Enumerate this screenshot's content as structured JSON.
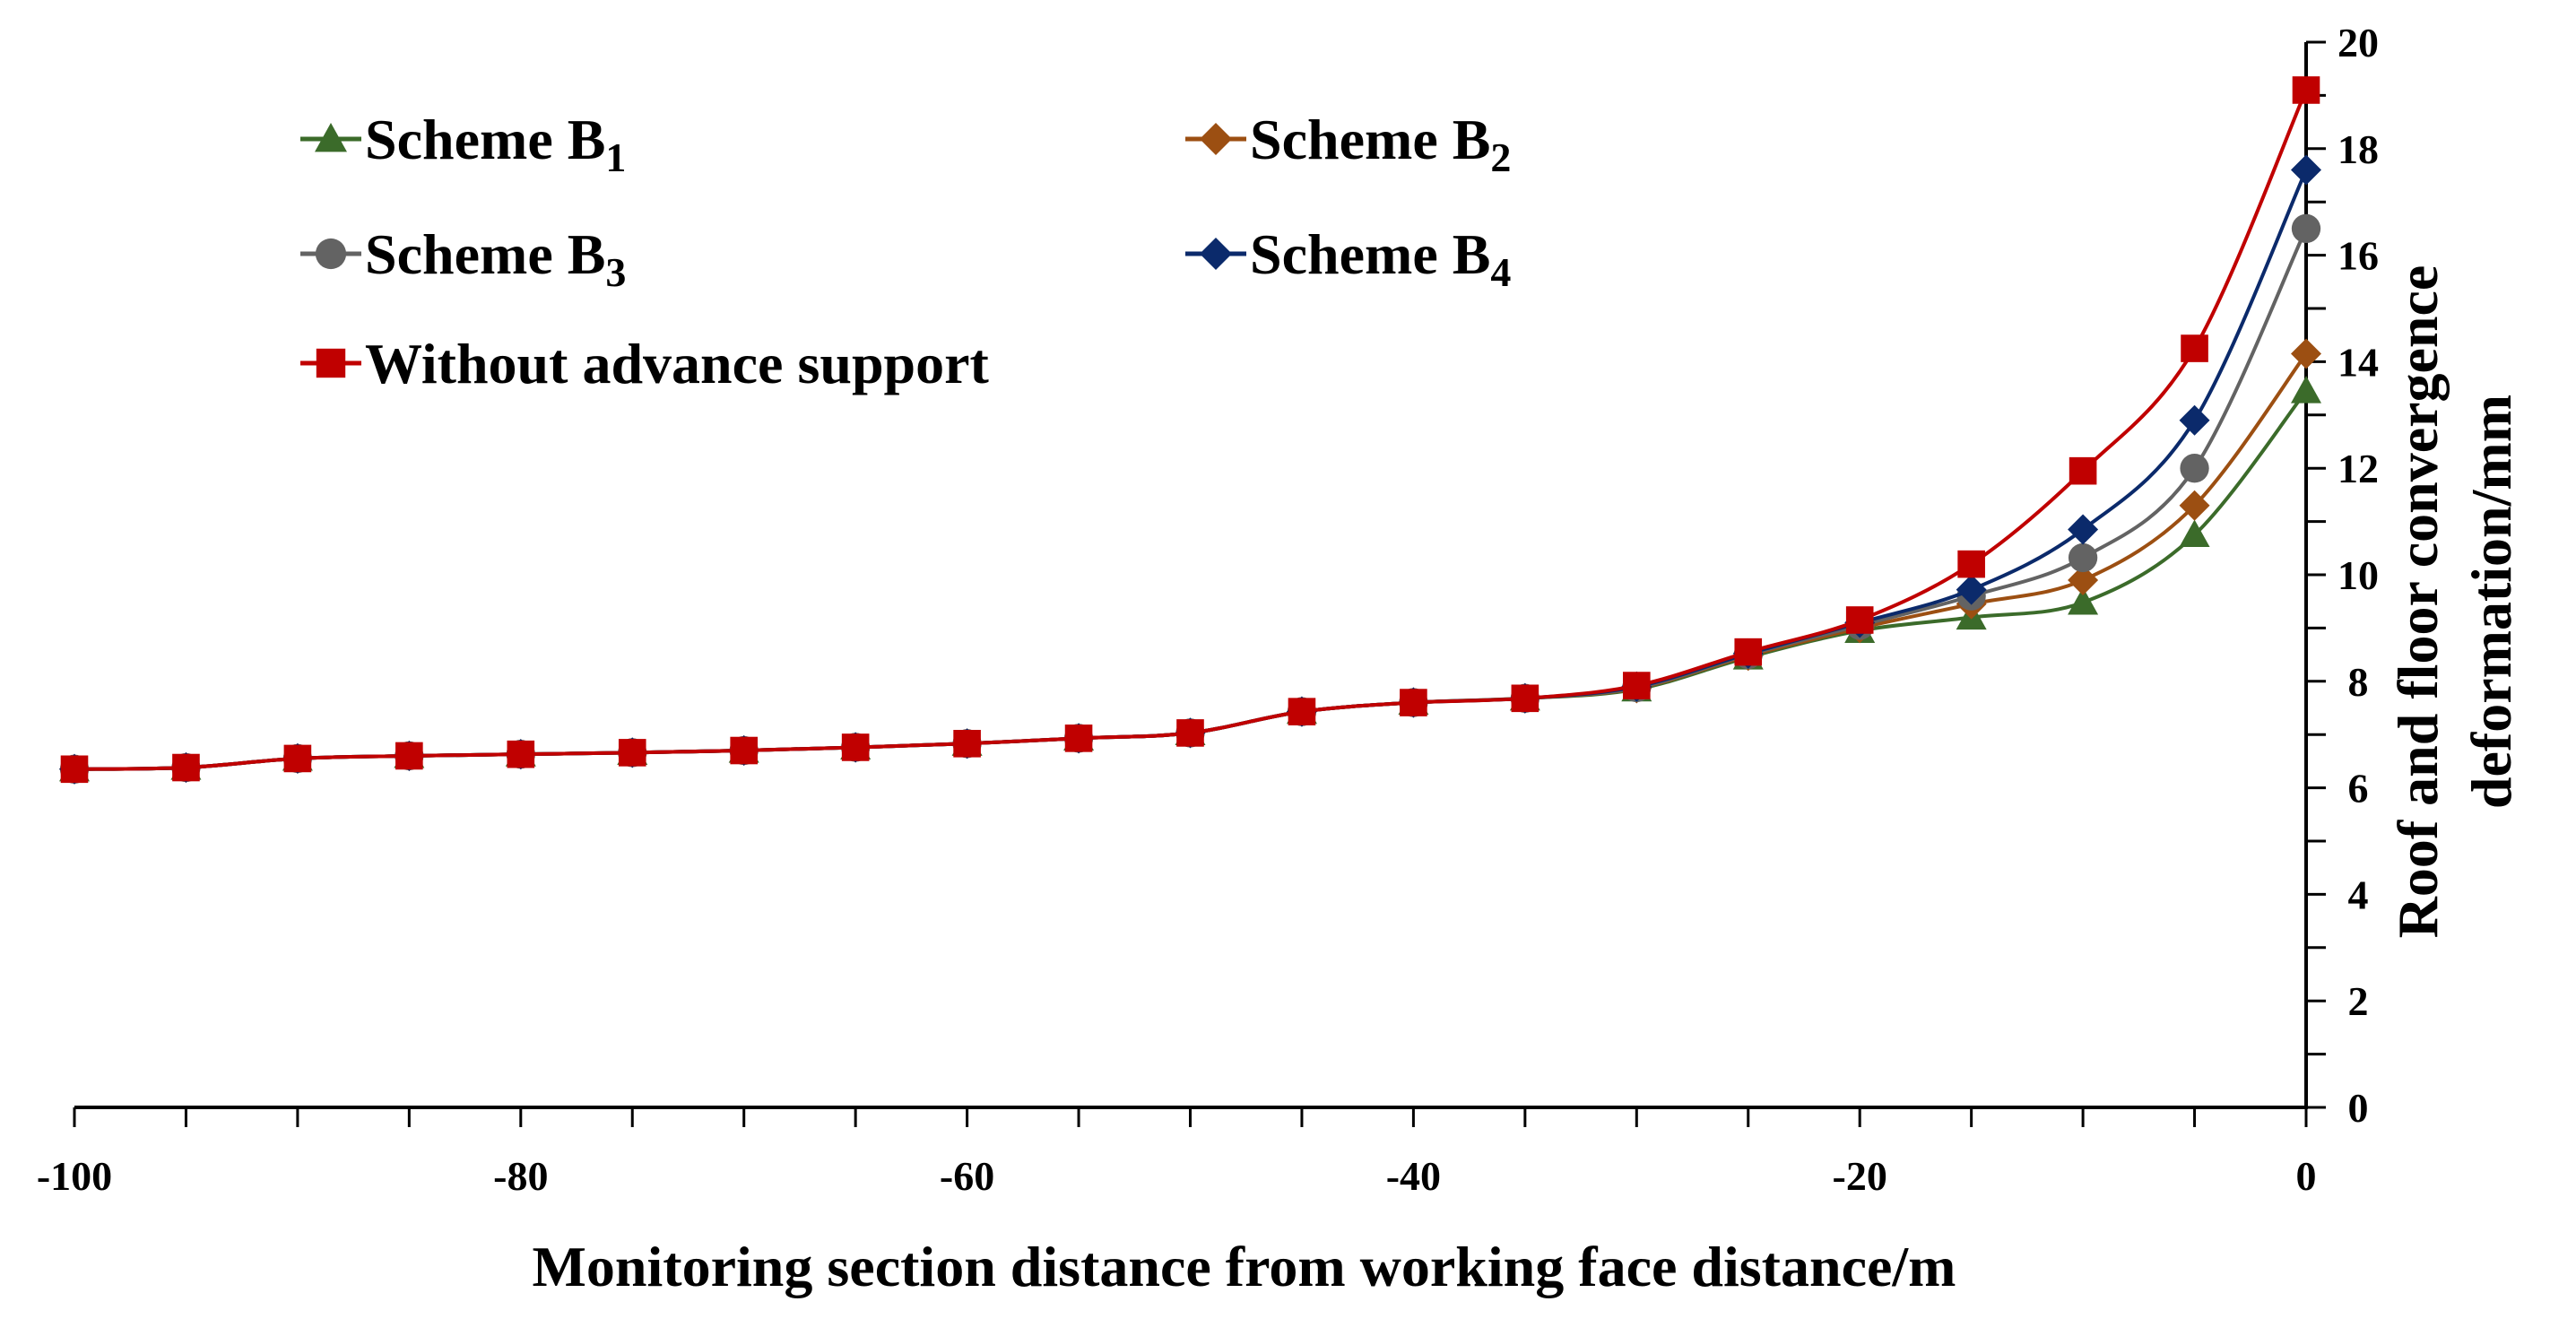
{
  "chart_data": {
    "type": "line",
    "title": "",
    "xlabel": "Monitoring section distance from working face distance/m",
    "ylabel_lines": [
      "Roof and floor convergence",
      "deformation/mm"
    ],
    "xlim": [
      -100,
      0
    ],
    "ylim": [
      0,
      20
    ],
    "x_ticks": [
      -100,
      -80,
      -60,
      -40,
      -20,
      0
    ],
    "y_ticks": [
      0,
      2,
      4,
      6,
      8,
      10,
      12,
      14,
      16,
      18,
      20
    ],
    "x_tick_labels": [
      "-100",
      "-80",
      "-60",
      "-40",
      "-20",
      "0"
    ],
    "y_tick_labels": [
      "0",
      "2",
      "4",
      "6",
      "8",
      "10",
      "12",
      "14",
      "16",
      "18",
      "20"
    ],
    "y_axis_position": "right",
    "grid": false,
    "legend_position": "top-left",
    "x": [
      -100,
      -95,
      -90,
      -85,
      -80,
      -75,
      -70,
      -65,
      -60,
      -55,
      -50,
      -45,
      -40,
      -35,
      -30,
      -25,
      -20,
      -15,
      -10,
      -5,
      0
    ],
    "series": [
      {
        "name": "Scheme  B",
        "subscript": "1",
        "color": "#3b6b2a",
        "marker": "triangle",
        "values": [
          6.35,
          6.38,
          6.55,
          6.6,
          6.63,
          6.66,
          6.7,
          6.76,
          6.83,
          6.93,
          7.03,
          7.43,
          7.6,
          7.68,
          7.85,
          8.45,
          8.95,
          9.2,
          9.48,
          10.75,
          13.45
        ]
      },
      {
        "name": "Scheme  B",
        "subscript": "2",
        "color": "#9c4f12",
        "marker": "diamond",
        "values": [
          6.35,
          6.38,
          6.55,
          6.6,
          6.63,
          6.66,
          6.7,
          6.76,
          6.83,
          6.93,
          7.03,
          7.43,
          7.6,
          7.68,
          7.87,
          8.48,
          9.0,
          9.45,
          9.9,
          11.3,
          14.15
        ]
      },
      {
        "name": "Scheme  B",
        "subscript": "3",
        "color": "#636363",
        "marker": "circle",
        "values": [
          6.35,
          6.38,
          6.55,
          6.6,
          6.63,
          6.66,
          6.7,
          6.76,
          6.83,
          6.93,
          7.03,
          7.43,
          7.6,
          7.68,
          7.88,
          8.5,
          9.05,
          9.6,
          10.32,
          12.0,
          16.5
        ]
      },
      {
        "name": "Scheme  B",
        "subscript": "4",
        "color": "#0b2a6b",
        "marker": "diamond",
        "values": [
          6.35,
          6.38,
          6.55,
          6.6,
          6.63,
          6.66,
          6.7,
          6.76,
          6.83,
          6.93,
          7.03,
          7.43,
          7.6,
          7.68,
          7.9,
          8.52,
          9.1,
          9.72,
          10.85,
          12.9,
          17.6
        ]
      },
      {
        "name": "Without advance support",
        "subscript": "",
        "color": "#c00000",
        "marker": "square",
        "values": [
          6.35,
          6.38,
          6.55,
          6.6,
          6.63,
          6.66,
          6.7,
          6.76,
          6.83,
          6.93,
          7.03,
          7.43,
          7.6,
          7.68,
          7.92,
          8.55,
          9.15,
          10.2,
          11.95,
          14.25,
          19.1
        ]
      }
    ]
  }
}
